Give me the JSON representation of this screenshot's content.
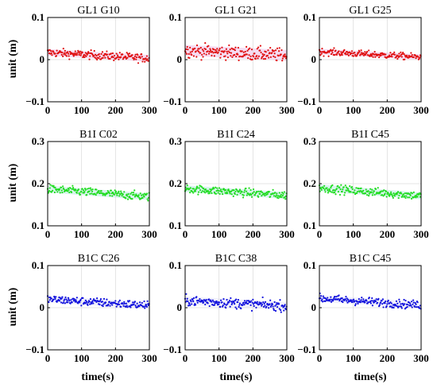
{
  "figure": {
    "ylabel": "unit (m)",
    "xlabel": "time(s)",
    "colors": {
      "GPS": "#e01010",
      "BDS3": "#22dd22",
      "BDS3_B1C": "#1010dd"
    }
  },
  "chart_data": [
    {
      "type": "scatter",
      "title": "GL1 G10",
      "system": "GPS",
      "xlim": [
        0,
        300
      ],
      "ylim": [
        -0.1,
        0.1
      ],
      "xticks": [
        "0",
        "100",
        "200",
        "300"
      ],
      "yticks": [
        "0.1",
        "0",
        "−0.1"
      ],
      "yticks_v": [
        0.1,
        0,
        -0.1
      ],
      "grid": true,
      "trend": [
        0.017,
        0.003
      ],
      "spread": 0.005
    },
    {
      "type": "scatter",
      "title": "GL1 G21",
      "system": "GPS",
      "xlim": [
        0,
        300
      ],
      "ylim": [
        -0.1,
        0.1
      ],
      "xticks": [
        "0",
        "100",
        "200",
        "300"
      ],
      "yticks": [
        "0.1",
        "0",
        "−0.1"
      ],
      "yticks_v": [
        0.1,
        0,
        -0.1
      ],
      "grid": true,
      "trend": [
        0.022,
        0.01
      ],
      "spread": 0.008
    },
    {
      "type": "scatter",
      "title": "GL1 G25",
      "system": "GPS",
      "xlim": [
        0,
        300
      ],
      "ylim": [
        -0.1,
        0.1
      ],
      "xticks": [
        "0",
        "100",
        "200",
        "300"
      ],
      "yticks": [
        "0.1",
        "0",
        "−0.1"
      ],
      "yticks_v": [
        0.1,
        0,
        -0.1
      ],
      "grid": true,
      "trend": [
        0.019,
        0.006
      ],
      "spread": 0.004
    },
    {
      "type": "scatter",
      "title": "B1I C02",
      "system": "BDS3",
      "xlim": [
        0,
        300
      ],
      "ylim": [
        0.1,
        0.3
      ],
      "xticks": [
        "0",
        "100",
        "200",
        "300"
      ],
      "yticks": [
        "0.3",
        "0.2",
        "0.1"
      ],
      "yticks_v": [
        0.3,
        0.2,
        0.1
      ],
      "grid": true,
      "trend": [
        0.187,
        0.169
      ],
      "spread": 0.005
    },
    {
      "type": "scatter",
      "title": "B1I C24",
      "system": "BDS3",
      "xlim": [
        0,
        300
      ],
      "ylim": [
        0.1,
        0.3
      ],
      "xticks": [
        "0",
        "100",
        "200",
        "300"
      ],
      "yticks": [
        "0.3",
        "0.2",
        "0.1"
      ],
      "yticks_v": [
        0.3,
        0.2,
        0.1
      ],
      "grid": true,
      "trend": [
        0.188,
        0.172
      ],
      "spread": 0.005
    },
    {
      "type": "scatter",
      "title": "B1I C45",
      "system": "BDS3",
      "xlim": [
        0,
        300
      ],
      "ylim": [
        0.1,
        0.3
      ],
      "xticks": [
        "0",
        "100",
        "200",
        "300"
      ],
      "yticks": [
        "0.3",
        "0.2",
        "0.1"
      ],
      "yticks_v": [
        0.3,
        0.2,
        0.1
      ],
      "grid": true,
      "trend": [
        0.19,
        0.171
      ],
      "spread": 0.005
    },
    {
      "type": "scatter",
      "title": "B1C C26",
      "system": "BDS3_B1C",
      "xlim": [
        0,
        300
      ],
      "ylim": [
        -0.1,
        0.1
      ],
      "xticks": [
        "0",
        "100",
        "200",
        "300"
      ],
      "yticks": [
        "0.1",
        "0",
        "−0.1"
      ],
      "yticks_v": [
        0.1,
        0,
        -0.1
      ],
      "grid": true,
      "trend": [
        0.02,
        0.005
      ],
      "spread": 0.005
    },
    {
      "type": "scatter",
      "title": "B1C C38",
      "system": "BDS3_B1C",
      "xlim": [
        0,
        300
      ],
      "ylim": [
        -0.1,
        0.1
      ],
      "xticks": [
        "0",
        "100",
        "200",
        "300"
      ],
      "yticks": [
        "0.1",
        "0",
        "−0.1"
      ],
      "yticks_v": [
        0.1,
        0,
        -0.1
      ],
      "grid": true,
      "trend": [
        0.017,
        0.004
      ],
      "spread": 0.006
    },
    {
      "type": "scatter",
      "title": "B1C C45",
      "system": "BDS3_B1C",
      "xlim": [
        0,
        300
      ],
      "ylim": [
        -0.1,
        0.1
      ],
      "xticks": [
        "0",
        "100",
        "200",
        "300"
      ],
      "yticks": [
        "0.1",
        "0",
        "−0.1"
      ],
      "yticks_v": [
        0.1,
        0,
        -0.1
      ],
      "grid": true,
      "trend": [
        0.022,
        0.006
      ],
      "spread": 0.005
    }
  ]
}
